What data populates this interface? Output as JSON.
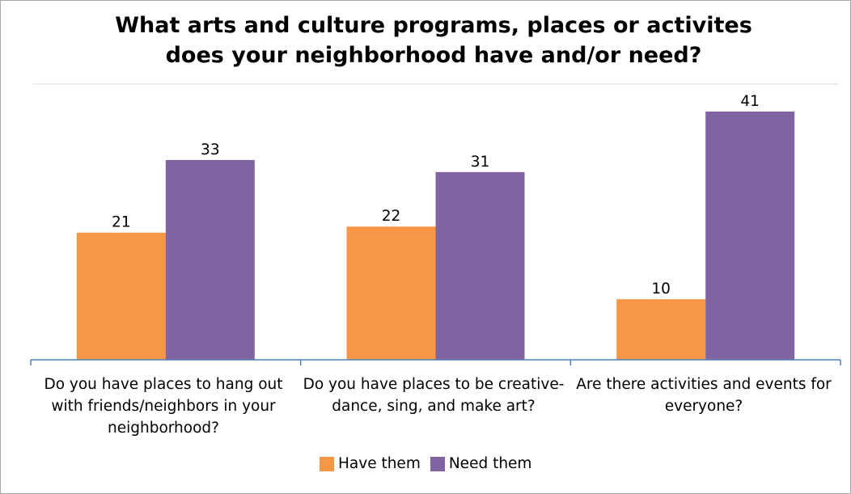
{
  "chart_data": {
    "type": "bar",
    "title": "What arts and culture programs, places or activites\ndoes your neighborhood have and/or need?",
    "categories": [
      "Do you have places to hang out with friends/neighbors in your neighborhood?",
      "Do you have places to be creative- dance, sing, and make art?",
      "Are there activities and events for everyone?"
    ],
    "series": [
      {
        "name": "Have them",
        "color": "#f79646",
        "values": [
          21,
          22,
          10
        ]
      },
      {
        "name": "Need them",
        "color": "#8064a2",
        "values": [
          33,
          31,
          41
        ]
      }
    ],
    "ylim": [
      0,
      45
    ],
    "grid": false,
    "legend": "bottom",
    "data_labels": true
  }
}
